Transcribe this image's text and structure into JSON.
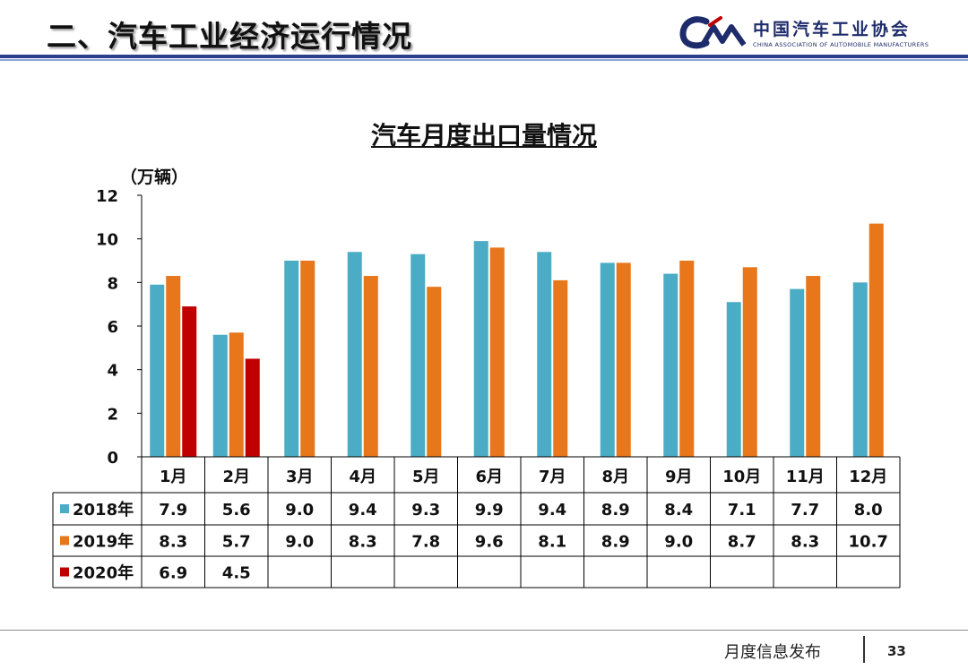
{
  "header": {
    "title": "二、汽车工业经济运行情况",
    "org_name_cn": "中国汽车工业协会",
    "org_name_en": "CHINA ASSOCIATION OF AUTOMOBILE MANUFACTURERS",
    "accent_color": "#2b3f8c"
  },
  "chart_data": {
    "type": "bar",
    "title": "汽车月度出口量情况",
    "ylabel": "（万辆）",
    "xlabel": "",
    "ylim": [
      0,
      12
    ],
    "yticks": [
      0,
      2,
      4,
      6,
      8,
      10,
      12
    ],
    "grid": false,
    "legend": "table-bottom",
    "categories": [
      "1月",
      "2月",
      "3月",
      "4月",
      "5月",
      "6月",
      "7月",
      "8月",
      "9月",
      "10月",
      "11月",
      "12月"
    ],
    "series": [
      {
        "name": "2018年",
        "color": "#4bacc6",
        "values": [
          7.9,
          5.6,
          9.0,
          9.4,
          9.3,
          9.9,
          9.4,
          8.9,
          8.4,
          7.1,
          7.7,
          8.0
        ],
        "labels": [
          "7.9",
          "5.6",
          "9.0",
          "9.4",
          "9.3",
          "9.9",
          "9.4",
          "8.9",
          "8.4",
          "7.1",
          "7.7",
          "8.0"
        ]
      },
      {
        "name": "2019年",
        "color": "#e8761a",
        "values": [
          8.3,
          5.7,
          9.0,
          8.3,
          7.8,
          9.6,
          8.1,
          8.9,
          9.0,
          8.7,
          8.3,
          10.7
        ],
        "labels": [
          "8.3",
          "5.7",
          "9.0",
          "8.3",
          "7.8",
          "9.6",
          "8.1",
          "8.9",
          "9.0",
          "8.7",
          "8.3",
          "10.7"
        ]
      },
      {
        "name": "2020年",
        "color": "#c00000",
        "values": [
          6.9,
          4.5,
          null,
          null,
          null,
          null,
          null,
          null,
          null,
          null,
          null,
          null
        ],
        "labels": [
          "6.9",
          "4.5",
          "",
          "",
          "",
          "",
          "",
          "",
          "",
          "",
          "",
          ""
        ]
      }
    ]
  },
  "footer": {
    "label": "月度信息发布",
    "page_number": "33"
  }
}
